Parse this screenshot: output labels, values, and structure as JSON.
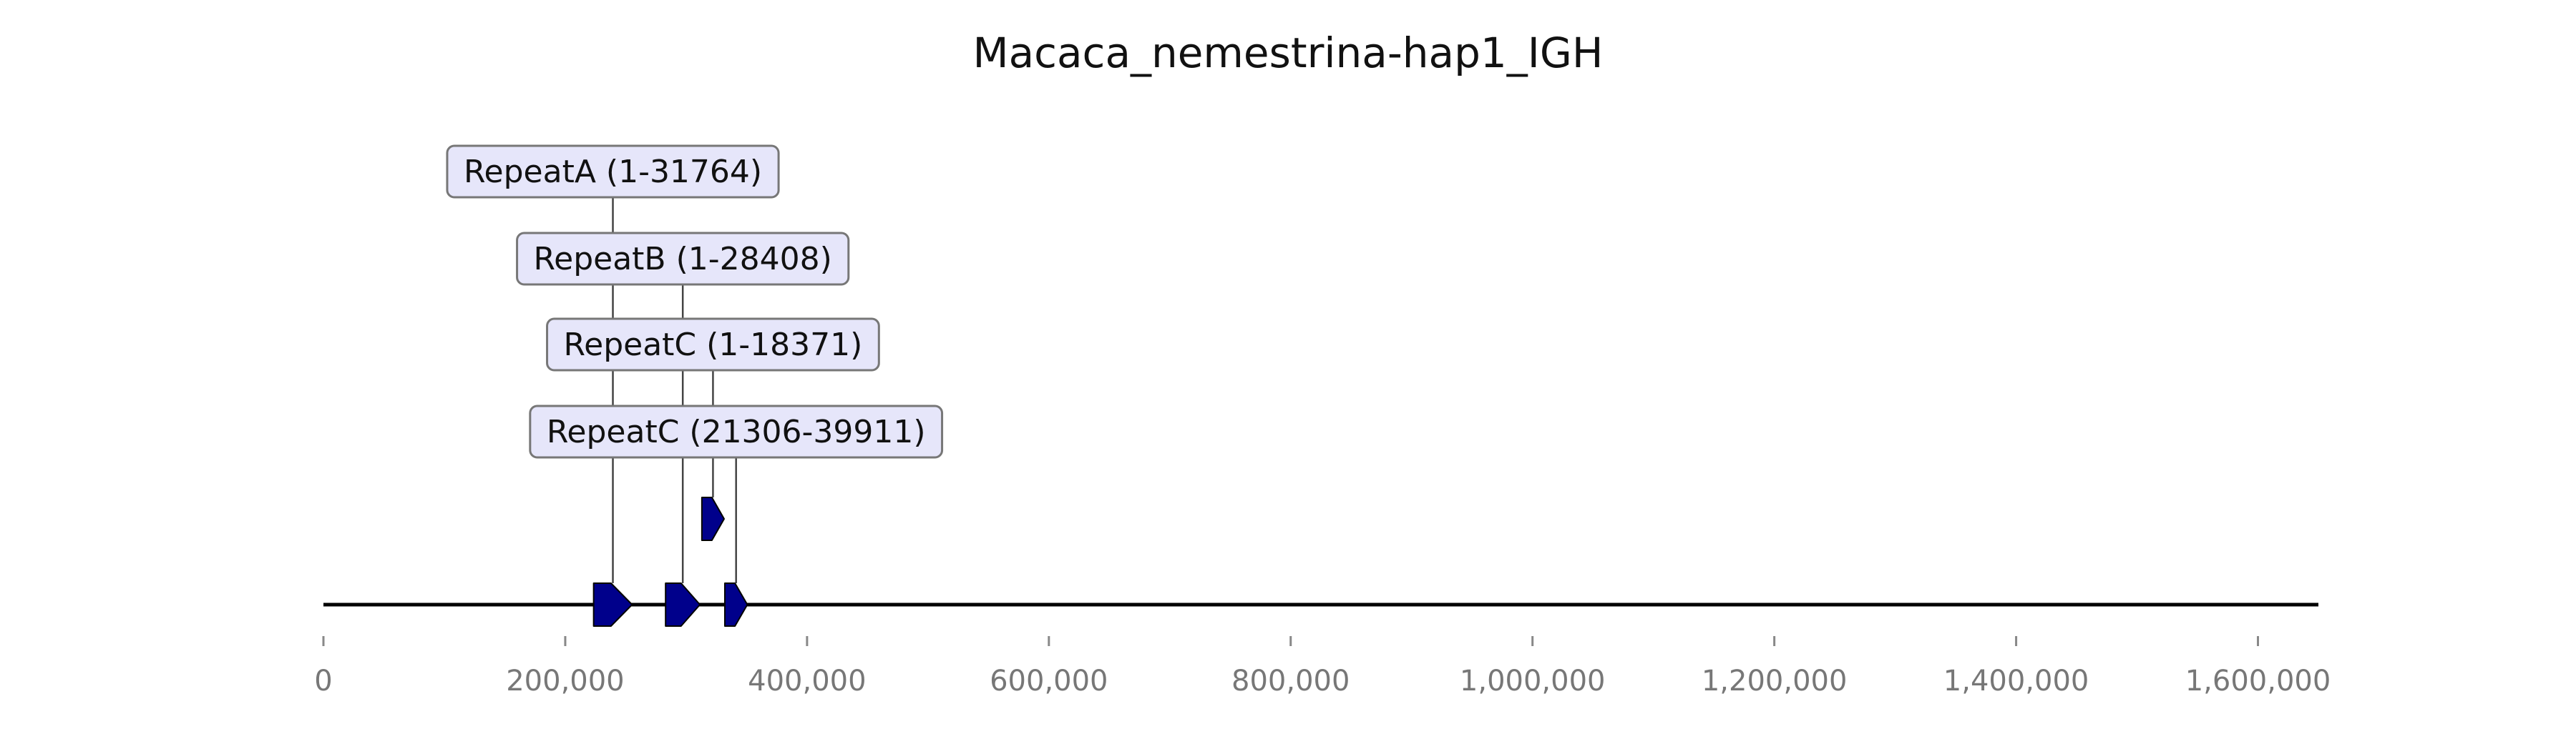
{
  "title": "Macaca_nemestrina-hap1_IGH",
  "colors": {
    "feature_fill": "#00008b",
    "feature_stroke": "#000000",
    "label_box_fill": "#e6e6fa",
    "label_box_stroke": "#777777",
    "axis_line": "#000000",
    "connector": "#444444"
  },
  "axis": {
    "min": 0,
    "max": 1650000,
    "ticks": [
      {
        "value": 0,
        "label": "0"
      },
      {
        "value": 200000,
        "label": "200,000"
      },
      {
        "value": 400000,
        "label": "400,000"
      },
      {
        "value": 600000,
        "label": "600,000"
      },
      {
        "value": 800000,
        "label": "800,000"
      },
      {
        "value": 1000000,
        "label": "1,000,000"
      },
      {
        "value": 1200000,
        "label": "1,200,000"
      },
      {
        "value": 1400000,
        "label": "1,400,000"
      },
      {
        "value": 1600000,
        "label": "1,600,000"
      }
    ]
  },
  "features": [
    {
      "start": 223500,
      "end": 255300,
      "strand": 1,
      "track": 0,
      "label": "RepeatA (1-31764)",
      "label_level": 0
    },
    {
      "start": 283000,
      "end": 311400,
      "strand": 1,
      "track": 0,
      "label": "RepeatB (1-28408)",
      "label_level": 1
    },
    {
      "start": 313000,
      "end": 331400,
      "strand": 1,
      "track": 1,
      "label": "RepeatC (1-18371)",
      "label_level": 2
    },
    {
      "start": 332000,
      "end": 350600,
      "strand": 1,
      "track": 0,
      "label": "RepeatC (21306-39911)",
      "label_level": 3
    }
  ]
}
